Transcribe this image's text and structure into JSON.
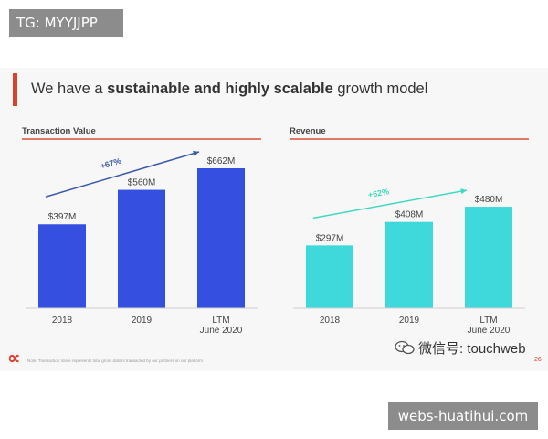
{
  "watermark_top": "TG: MYYJJPP",
  "watermark_bottom": "webs-huatihui.com",
  "headline": {
    "prefix": "We have a ",
    "bold": "sustainable and highly scalable",
    "suffix": " growth model"
  },
  "colors": {
    "accent": "#d8432f",
    "blue": "#3550e0",
    "cyan": "#3fd9dc",
    "arrow_blue": "#3d5aa8",
    "arrow_cyan": "#3fd9c0"
  },
  "chart_data": [
    {
      "type": "bar",
      "title": "Transaction Value",
      "categories": [
        "2018",
        "2019",
        "LTM\nJune 2020"
      ],
      "values": [
        397,
        560,
        662
      ],
      "value_labels": [
        "$397M",
        "$560M",
        "$662M"
      ],
      "unit": "$M",
      "growth_label": "+67%",
      "ylim": [
        0,
        700
      ]
    },
    {
      "type": "bar",
      "title": "Revenue",
      "categories": [
        "2018",
        "2019",
        "LTM\nJune 2020"
      ],
      "values": [
        297,
        408,
        480
      ],
      "value_labels": [
        "$297M",
        "$408M",
        "$480M"
      ],
      "unit": "$M",
      "growth_label": "+62%",
      "ylim": [
        0,
        700
      ]
    }
  ],
  "footer": {
    "note": "Note: Transaction Value represents total gross dollars transacted by our partners on our platform",
    "wechat": "微信号: touchweb",
    "page": "26"
  }
}
